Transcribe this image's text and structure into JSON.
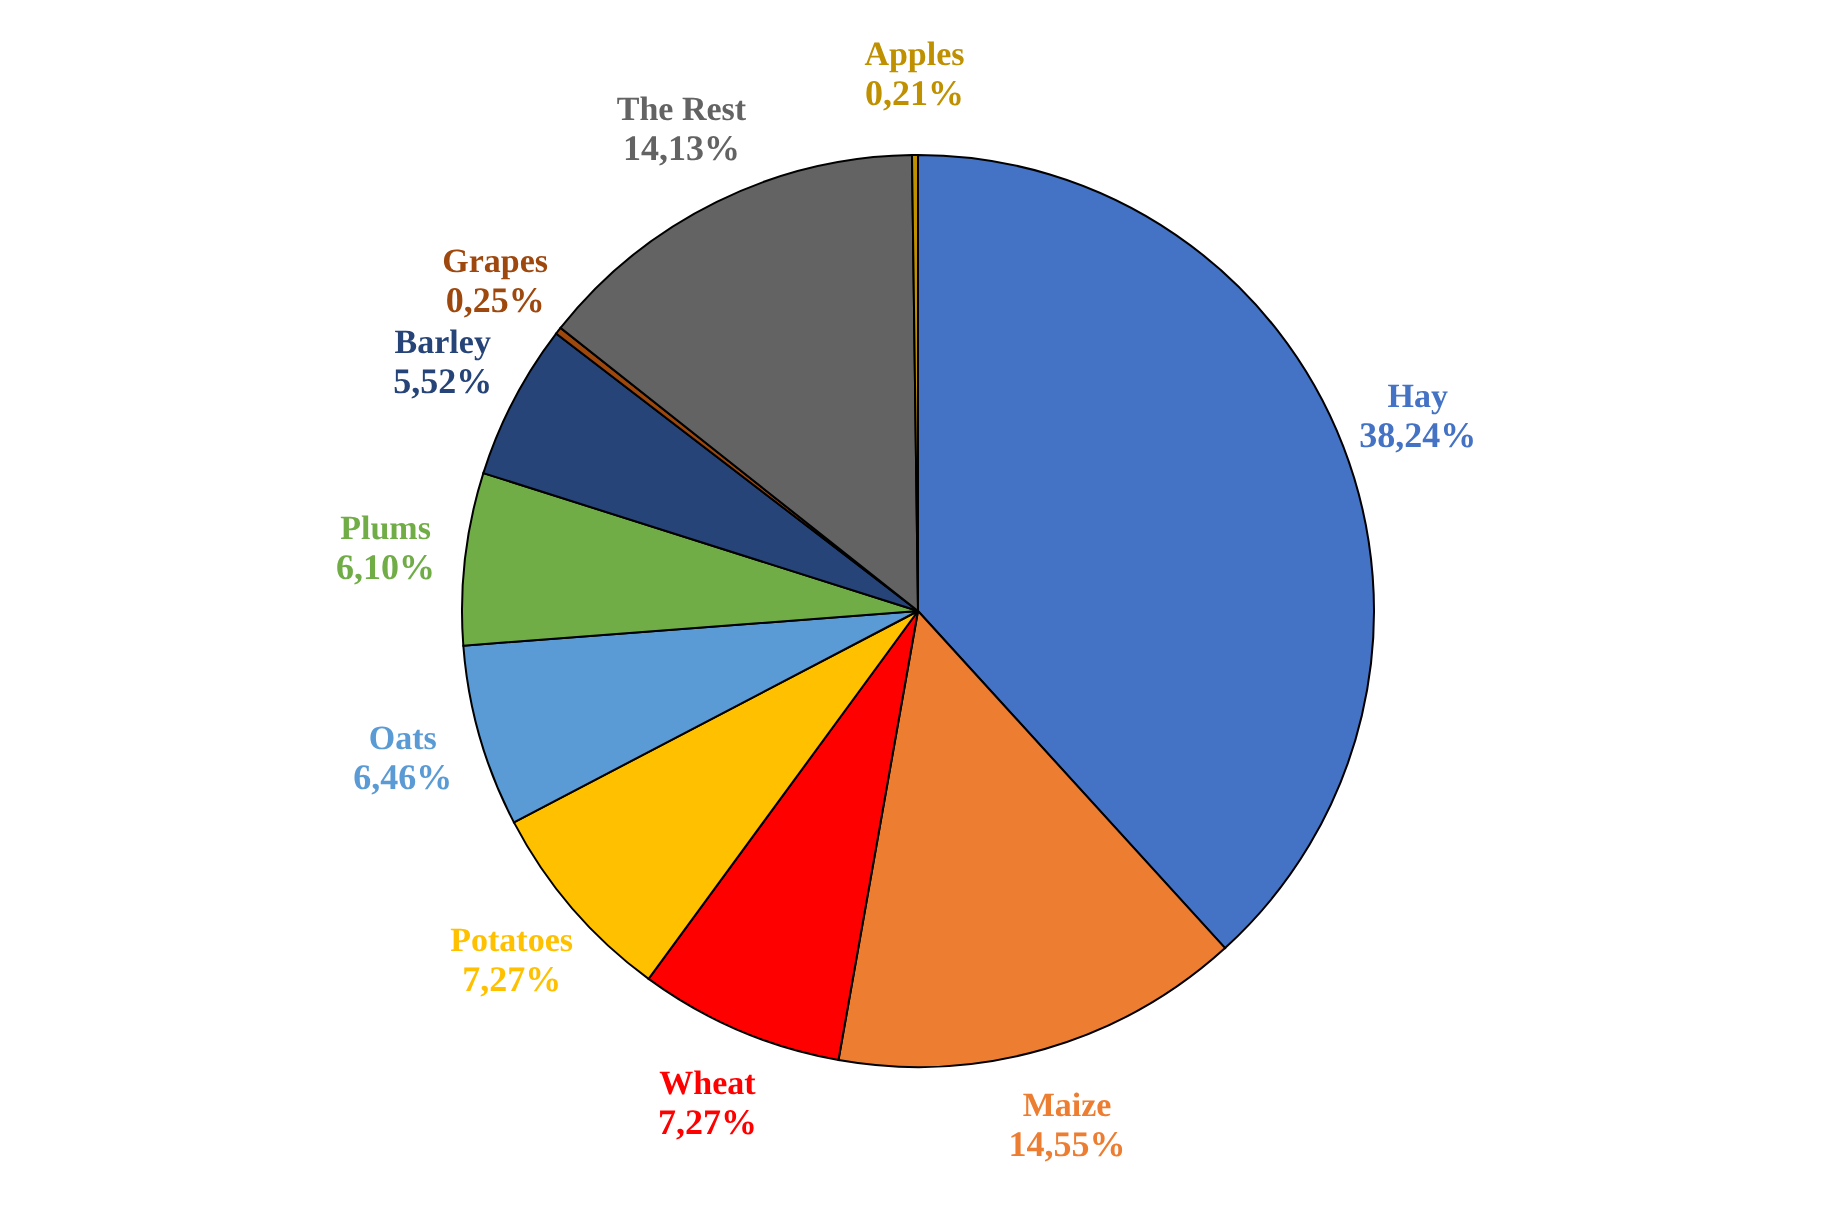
{
  "chart_data": {
    "type": "pie",
    "categories": [
      "Hay",
      "Maize",
      "Wheat",
      "Potatoes",
      "Oats",
      "Plums",
      "Barley",
      "Grapes",
      "The Rest",
      "Apples"
    ],
    "values": [
      38.24,
      14.55,
      7.27,
      7.27,
      6.46,
      6.1,
      5.52,
      0.25,
      14.13,
      0.21
    ],
    "colors": [
      "#4472c4",
      "#ed7d31",
      "#ff0000",
      "#ffc000",
      "#5b9bd5",
      "#70ad47",
      "#264478",
      "#9e480e",
      "#636363",
      "#bf9000"
    ],
    "value_labels": [
      "38,24%",
      "14,55%",
      "7,27%",
      "7,27%",
      "6,46%",
      "6,10%",
      "5,52%",
      "0,25%",
      "14,13%",
      "0,21%"
    ],
    "legend": false
  }
}
